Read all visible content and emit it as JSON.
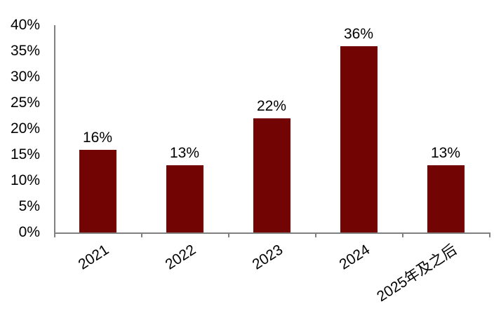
{
  "chart_data": {
    "type": "bar",
    "categories": [
      "2021",
      "2022",
      "2023",
      "2024",
      "2025年及之后"
    ],
    "values": [
      16,
      13,
      22,
      36,
      13
    ],
    "data_labels": [
      "16%",
      "13%",
      "22%",
      "36%",
      "13%"
    ],
    "series_name": "",
    "title": "",
    "xlabel": "",
    "ylabel": "",
    "ylim": [
      0,
      40
    ],
    "ytick_step": 5,
    "ytick_labels": [
      "0%",
      "5%",
      "10%",
      "15%",
      "20%",
      "25%",
      "30%",
      "35%",
      "40%"
    ],
    "grid": false,
    "legend_position": "none",
    "x_label_rotation_deg": -33,
    "colors": {
      "bar_fill": "#730404",
      "axis_line": "#808080",
      "label_text": "#000000",
      "background": "#ffffff"
    }
  }
}
